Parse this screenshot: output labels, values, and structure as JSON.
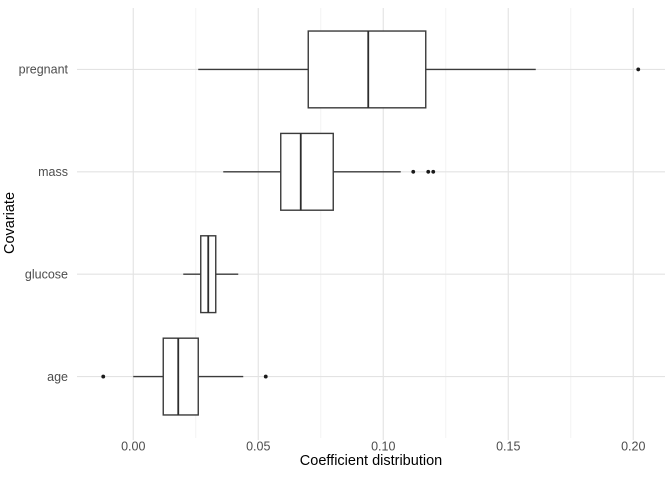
{
  "chart_data": {
    "type": "boxplot",
    "orientation": "horizontal",
    "title": "",
    "xlabel": "Coefficient distribution",
    "ylabel": "Covariate",
    "categories": [
      "pregnant",
      "mass",
      "glucose",
      "age"
    ],
    "x_ticks": [
      0.0,
      0.05,
      0.1,
      0.15,
      0.2
    ],
    "x_tick_labels": [
      "0.00",
      "0.05",
      "0.10",
      "0.15",
      "0.20"
    ],
    "x_minor_ticks": [
      0.025,
      0.075,
      0.125,
      0.175
    ],
    "xlim": [
      -0.0225,
      0.2127
    ],
    "grid": "x-major, x-minor, y-major(category rows); no panel border; no legend",
    "series": [
      {
        "category": "pregnant",
        "whisker_low": 0.026,
        "q1": 0.07,
        "median": 0.094,
        "q3": 0.117,
        "whisker_high": 0.161,
        "outliers": [
          0.202
        ]
      },
      {
        "category": "mass",
        "whisker_low": 0.036,
        "q1": 0.059,
        "median": 0.067,
        "q3": 0.08,
        "whisker_high": 0.107,
        "outliers": [
          0.112,
          0.118,
          0.12
        ]
      },
      {
        "category": "glucose",
        "whisker_low": 0.02,
        "q1": 0.027,
        "median": 0.03,
        "q3": 0.033,
        "whisker_high": 0.042,
        "outliers": []
      },
      {
        "category": "age",
        "whisker_low": 0.0,
        "q1": 0.012,
        "median": 0.018,
        "q3": 0.026,
        "whisker_high": 0.044,
        "outliers": [
          -0.012,
          0.053
        ]
      }
    ],
    "colors": {
      "background": "#ffffff",
      "grid_major": "#e3e3e3",
      "grid_minor": "#f2f2f2",
      "box_stroke": "#3b3b3b",
      "box_fill": "#ffffff",
      "median": "#2d2d2d",
      "outlier": "#1a1a1a",
      "tick_label": "#4d4d4d",
      "axis_title": "#000000"
    }
  }
}
